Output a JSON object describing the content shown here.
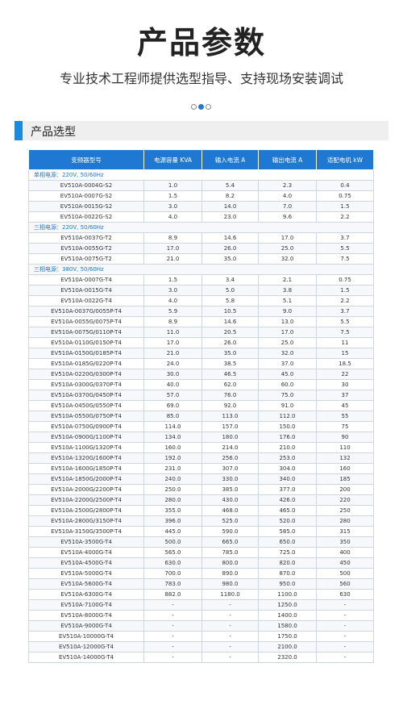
{
  "header": {
    "title": "产品参数",
    "subtitle": "专业技术工程师提供选型指导、支持现场安装调试"
  },
  "section": {
    "title": "产品选型"
  },
  "table": {
    "columns": [
      "变频器型号",
      "电源容量 KVA",
      "输入电流 A",
      "输出电流 A",
      "适配电机 kW"
    ],
    "groups": [
      {
        "title": "单相电源：220V, 50/60Hz",
        "rows": [
          [
            "EV510A-0004G-S2",
            "1.0",
            "5.4",
            "2.3",
            "0.4"
          ],
          [
            "EV510A-0007G-S2",
            "1.5",
            "8.2",
            "4.0",
            "0.75"
          ],
          [
            "EV510A-0015G-S2",
            "3.0",
            "14.0",
            "7.0",
            "1.5"
          ],
          [
            "EV510A-0022G-S2",
            "4.0",
            "23.0",
            "9.6",
            "2.2"
          ]
        ]
      },
      {
        "title": "三相电源：220V, 50/60Hz",
        "rows": [
          [
            "EV510A-0037G-T2",
            "8.9",
            "14.6",
            "17.0",
            "3.7"
          ],
          [
            "EV510A-0055G-T2",
            "17.0",
            "26.0",
            "25.0",
            "5.5"
          ],
          [
            "EV510A-0075G-T2",
            "21.0",
            "35.0",
            "32.0",
            "7.5"
          ]
        ]
      },
      {
        "title": "三相电源：380V, 50/60Hz",
        "rows": [
          [
            "EV510A-0007G-T4",
            "1.5",
            "3.4",
            "2.1",
            "0.75"
          ],
          [
            "EV510A-0015G-T4",
            "3.0",
            "5.0",
            "3.8",
            "1.5"
          ],
          [
            "EV510A-0022G-T4",
            "4.0",
            "5.8",
            "5.1",
            "2.2"
          ],
          [
            "EV510A-0037G/0055P-T4",
            "5.9",
            "10.5",
            "9.0",
            "3.7"
          ],
          [
            "EV510A-0055G/0075P-T4",
            "8.9",
            "14.6",
            "13.0",
            "5.5"
          ],
          [
            "EV510A-0075G/0110P-T4",
            "11.0",
            "20.5",
            "17.0",
            "7.5"
          ],
          [
            "EV510A-0110G/0150P-T4",
            "17.0",
            "26.0",
            "25.0",
            "11"
          ],
          [
            "EV510A-0150G/0185P-T4",
            "21.0",
            "35.0",
            "32.0",
            "15"
          ],
          [
            "EV510A-0185G/0220P-T4",
            "24.0",
            "38.5",
            "37.0",
            "18.5"
          ],
          [
            "EV510A-0220G/0300P-T4",
            "30.0",
            "46.5",
            "45.0",
            "22"
          ],
          [
            "EV510A-0300G/0370P-T4",
            "40.0",
            "62.0",
            "60.0",
            "30"
          ],
          [
            "EV510A-0370G/0450P-T4",
            "57.0",
            "76.0",
            "75.0",
            "37"
          ],
          [
            "EV510A-0450G/0550P-T4",
            "69.0",
            "92.0",
            "91.0",
            "45"
          ],
          [
            "EV510A-0550G/0750P-T4",
            "85.0",
            "113.0",
            "112.0",
            "55"
          ],
          [
            "EV510A-0750G/0900P-T4",
            "114.0",
            "157.0",
            "150.0",
            "75"
          ],
          [
            "EV510A-0900G/1100P-T4",
            "134.0",
            "180.0",
            "176.0",
            "90"
          ],
          [
            "EV510A-1100G/1320P-T4",
            "160.0",
            "214.0",
            "210.0",
            "110"
          ],
          [
            "EV510A-1320G/1600P-T4",
            "192.0",
            "256.0",
            "253.0",
            "132"
          ],
          [
            "EV510A-1600G/1850P-T4",
            "231.0",
            "307.0",
            "304.0",
            "160"
          ],
          [
            "EV510A-1850G/2000P-T4",
            "240.0",
            "330.0",
            "340.0",
            "185"
          ],
          [
            "EV510A-2000G/2200P-T4",
            "250.0",
            "385.0",
            "377.0",
            "200"
          ],
          [
            "EV510A-2200G/2500P-T4",
            "280.0",
            "430.0",
            "426.0",
            "220"
          ],
          [
            "EV510A-2500G/2800P-T4",
            "355.0",
            "468.0",
            "465.0",
            "250"
          ],
          [
            "EV510A-2800G/3150P-T4",
            "396.0",
            "525.0",
            "520.0",
            "280"
          ],
          [
            "EV510A-3150G/3500P-T4",
            "445.0",
            "590.0",
            "585.0",
            "315"
          ],
          [
            "EV510A-3500G-T4",
            "500.0",
            "665.0",
            "650.0",
            "350"
          ],
          [
            "EV510A-4000G-T4",
            "565.0",
            "785.0",
            "725.0",
            "400"
          ],
          [
            "EV510A-4500G-T4",
            "630.0",
            "800.0",
            "820.0",
            "450"
          ],
          [
            "EV510A-5000G-T4",
            "700.0",
            "890.0",
            "870.0",
            "500"
          ],
          [
            "EV510A-5600G-T4",
            "783.0",
            "980.0",
            "950.0",
            "560"
          ],
          [
            "EV510A-6300G-T4",
            "882.0",
            "1180.0",
            "1100.0",
            "630"
          ],
          [
            "EV510A-7100G-T4",
            "-",
            "-",
            "1250.0",
            "-"
          ],
          [
            "EV510A-8000G-T4",
            "-",
            "-",
            "1400.0",
            "-"
          ],
          [
            "EV510A-9000G-T4",
            "-",
            "-",
            "1580.0",
            "-"
          ],
          [
            "EV510A-10000G-T4",
            "-",
            "-",
            "1750.0",
            "-"
          ],
          [
            "EV510A-12000G-T4",
            "-",
            "-",
            "2100.0",
            "-"
          ],
          [
            "EV510A-14000G-T4",
            "-",
            "-",
            "2320.0",
            "-"
          ]
        ]
      }
    ]
  }
}
